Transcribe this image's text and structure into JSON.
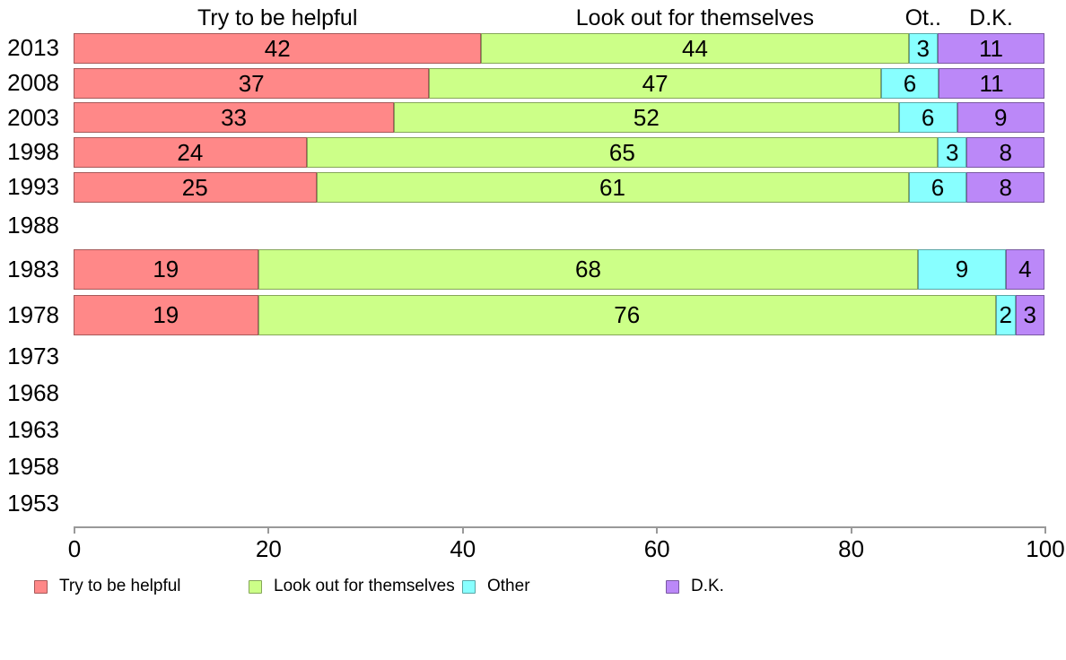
{
  "chart_data": {
    "type": "bar",
    "subtype": "stacked-horizontal",
    "title": "",
    "categories": [
      "2013",
      "2008",
      "2003",
      "1998",
      "1993",
      "1988",
      "1983",
      "1978",
      "1973",
      "1968",
      "1963",
      "1958",
      "1953"
    ],
    "series": [
      {
        "name": "Try to be helpful",
        "color": "#FF8888",
        "values": [
          42,
          37,
          33,
          24,
          25,
          null,
          19,
          19,
          null,
          null,
          null,
          null,
          null
        ]
      },
      {
        "name": "Look out for themselves",
        "color": "#CCFF88",
        "values": [
          44,
          47,
          52,
          65,
          61,
          null,
          68,
          76,
          null,
          null,
          null,
          null,
          null
        ]
      },
      {
        "name": "Other",
        "color": "#88FFFF",
        "values": [
          3,
          6,
          6,
          3,
          6,
          null,
          9,
          2,
          null,
          null,
          null,
          null,
          null
        ]
      },
      {
        "name": "D.K.",
        "color": "#BB88F8",
        "values": [
          11,
          11,
          9,
          8,
          8,
          null,
          4,
          3,
          null,
          null,
          null,
          null,
          null
        ]
      }
    ],
    "column_headers": [
      "Try to be helpful",
      "Look out for themselves",
      "Ot..",
      "D.K."
    ],
    "x_axis": {
      "min": 0,
      "max": 100,
      "ticks": [
        0,
        20,
        40,
        60,
        80,
        100
      ]
    },
    "axis_color": "#999999",
    "grid": false,
    "legend": {
      "position": "bottom",
      "entries": [
        {
          "label": "Try to be helpful",
          "color": "#FF8888"
        },
        {
          "label": "Look out for themselves",
          "color": "#CCFF88"
        },
        {
          "label": "Other",
          "color": "#88FFFF"
        },
        {
          "label": "D.K.",
          "color": "#BB88F8"
        }
      ]
    }
  }
}
